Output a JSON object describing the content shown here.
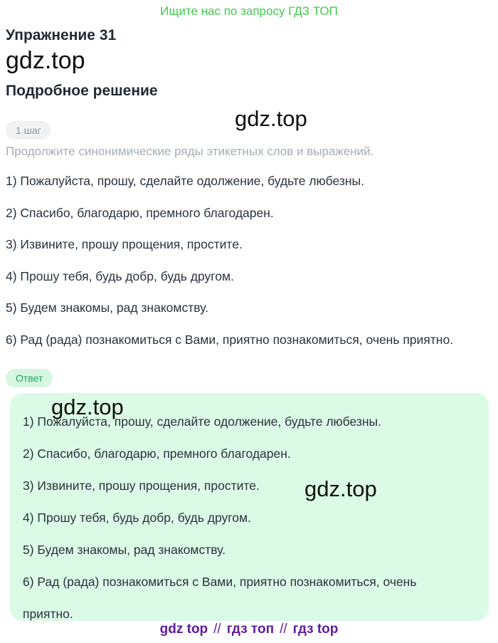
{
  "colors": {
    "promo_green": "#3fcc4b",
    "text_dark": "#29323e",
    "text_gray": "#a5adb5",
    "step_badge_bg": "#f1f2f3",
    "step_badge_text": "#8e959e",
    "answer_badge_bg": "#d6f6e0",
    "answer_badge_text": "#27a263",
    "answer_box_bg": "#dcfbe6",
    "footer_purple": "#611d9c"
  },
  "header": {
    "promo_text": "Ищите нас по запросу ГДЗ ТОП",
    "exercise_title": "Упражнение 31",
    "watermark": "gdz.top",
    "subtitle": "Подробное решение",
    "watermark_mid": "gdz.top"
  },
  "step": {
    "badge_label": "1 шаг",
    "instruction": "Продолжите синонимические ряды этикетных слов и выражений.",
    "items": [
      "1) Пожалуйста, прошу, сделайте одолжение, будьте любезны.",
      "2) Спасибо, благодарю, премного благодарен.",
      "3) Извините, прошу прощения, простите.",
      "4) Прошу тебя, будь добр, будь другом.",
      "5) Будем знакомы, рад знакомству.",
      "6) Рад (рада) познакомиться с Вами, приятно познакомиться, очень приятно."
    ]
  },
  "answer": {
    "badge_label": "Ответ",
    "watermark_1": "gdz.top",
    "watermark_2": "gdz.top",
    "items": [
      "1) Пожалуйста, прошу, сделайте одолжение, будьте любезны.",
      "2) Спасибо, благодарю, премного благодарен.",
      "3) Извините, прошу прощения, простите.",
      "4) Прошу тебя, будь добр, будь другом.",
      "5) Будем знакомы, рад знакомству.",
      "6) Рад (рада) познакомиться с Вами, приятно познакомиться, очень приятно."
    ]
  },
  "footer": {
    "links": [
      "gdz top",
      "гдз топ",
      "гдз top"
    ],
    "separator": "//"
  }
}
